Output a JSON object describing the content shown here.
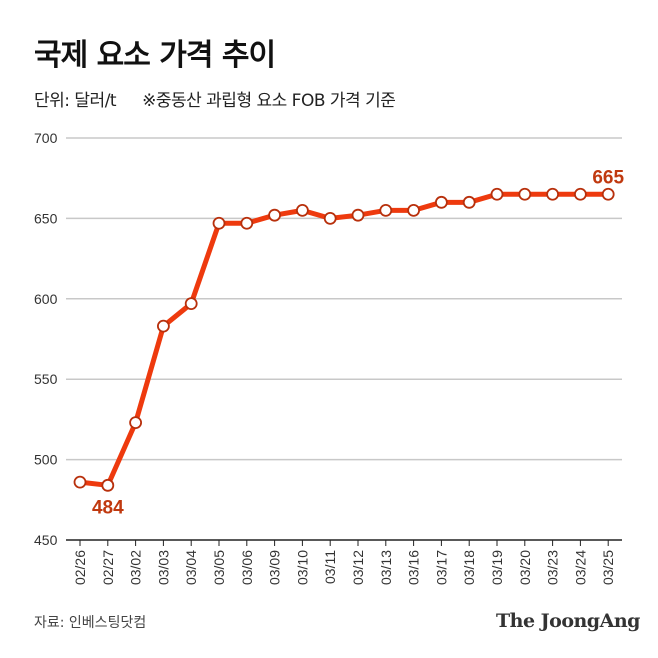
{
  "title": "국제 요소 가격 추이",
  "unit": "단위: 달러/t",
  "note": "※중동산 과립형 요소 FOB 가격 기준",
  "source": "자료: 인베스팅닷컴",
  "logo": "The JoongAng",
  "colors": {
    "line": "#ee3a0e",
    "label": "#c0390f",
    "grid": "#c8c8c8"
  },
  "chart_data": {
    "type": "line",
    "categories": [
      "02/26",
      "02/27",
      "03/02",
      "03/03",
      "03/04",
      "03/05",
      "03/06",
      "03/09",
      "03/10",
      "03/11",
      "03/12",
      "03/13",
      "03/16",
      "03/17",
      "03/18",
      "03/19",
      "03/20",
      "03/23",
      "03/24",
      "03/25"
    ],
    "values": [
      486,
      484,
      523,
      583,
      597,
      647,
      647,
      652,
      655,
      650,
      652,
      655,
      655,
      660,
      660,
      665,
      665,
      665,
      665,
      665
    ],
    "ylim": [
      450,
      700
    ],
    "yticks": [
      "450",
      "500",
      "550",
      "600",
      "650",
      "700"
    ],
    "grid": true,
    "annotations": [
      {
        "index": 1,
        "text": "484"
      },
      {
        "index": 19,
        "text": "665"
      }
    ]
  }
}
